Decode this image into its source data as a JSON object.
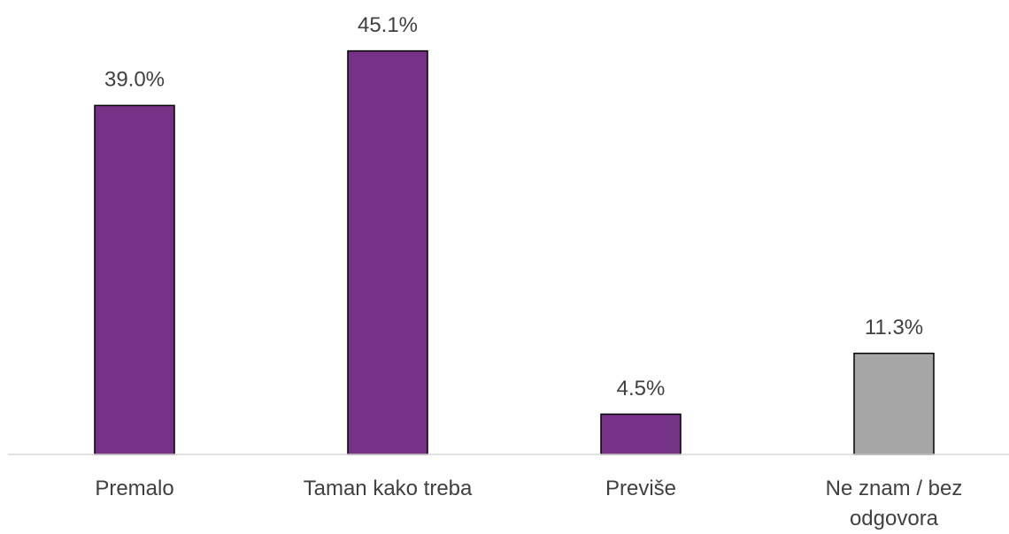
{
  "chart_data": {
    "type": "bar",
    "categories": [
      "Premalo",
      "Taman kako treba",
      "Previše",
      "Ne znam / bez odgovora"
    ],
    "values": [
      39.0,
      45.1,
      4.5,
      11.3
    ],
    "value_labels": [
      "39.0%",
      "45.1%",
      "4.5%",
      "11.3%"
    ],
    "colors": [
      "#753286",
      "#753286",
      "#753286",
      "#a6a6a6"
    ],
    "ylim": [
      0,
      50
    ]
  }
}
